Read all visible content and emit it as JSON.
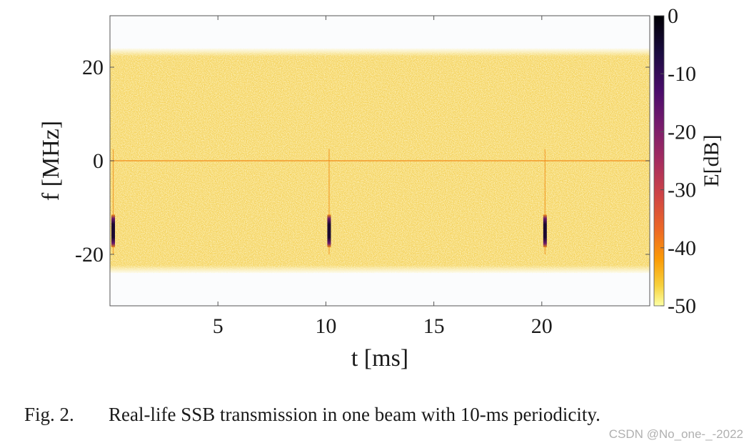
{
  "chart_data": {
    "type": "heatmap",
    "title": "",
    "xlabel": "t [ms]",
    "ylabel": "f [MHz]",
    "xlim": [
      0,
      25
    ],
    "ylim": [
      -31,
      31
    ],
    "xticks": [
      5,
      10,
      15,
      20
    ],
    "xtick_labels": [
      "5",
      "10",
      "15",
      "20"
    ],
    "yticks": [
      20,
      0,
      -20
    ],
    "ytick_labels": [
      "20",
      "0",
      "-20"
    ],
    "signal_band_mhz": [
      -24,
      24
    ],
    "center_line_mhz": 0,
    "background_level_db": -48,
    "ssb_bursts": [
      {
        "t_ms": 0.15,
        "f_range_mhz": [
          -18.5,
          -11.5
        ],
        "level_db": -2
      },
      {
        "t_ms": 10.15,
        "f_range_mhz": [
          -18.5,
          -11.5
        ],
        "level_db": -2
      },
      {
        "t_ms": 20.15,
        "f_range_mhz": [
          -18.5,
          -11.5
        ],
        "level_db": -2
      }
    ],
    "colorbar": {
      "label": "E[dB]",
      "range": [
        -50,
        0
      ],
      "ticks": [
        0,
        -10,
        -20,
        -30,
        -40,
        -50
      ],
      "tick_labels": [
        "0",
        "-10",
        "-20",
        "-30",
        "-40",
        "-50"
      ],
      "colormap": "inferno"
    }
  },
  "colors": {
    "low": "#fcf4a0",
    "mid": "#f1c33a",
    "high_orange": "#f08c16",
    "burst": "#2a0a4a",
    "axis": "#333333"
  },
  "caption": {
    "label": "Fig. 2.",
    "text": "Real-life SSB transmission in one beam with 10-ms periodicity."
  },
  "watermark": "CSDN @No_one-_-2022"
}
